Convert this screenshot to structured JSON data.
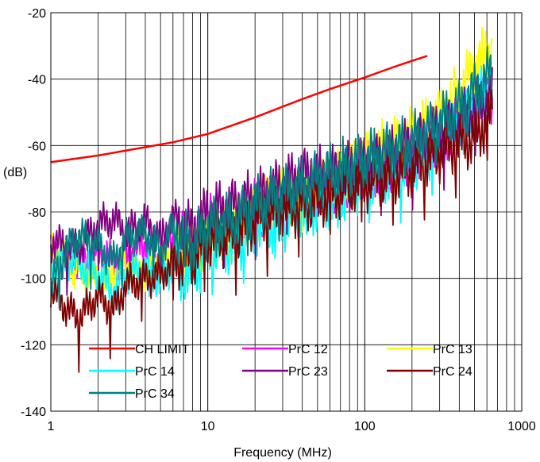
{
  "chart_data": {
    "type": "line",
    "title": "",
    "xlabel": "Frequency (MHz)",
    "ylabel": "(dB)",
    "x_scale": "log",
    "xlim": [
      1,
      1000
    ],
    "ylim": [
      -140,
      -20
    ],
    "x_ticks": [
      1,
      10,
      100,
      1000
    ],
    "x_tick_labels": [
      "1",
      "10",
      "100",
      "1000"
    ],
    "y_ticks": [
      -20,
      -40,
      -60,
      -80,
      -100,
      -120,
      -140
    ],
    "y_tick_labels": [
      "-20",
      "-40",
      "-60",
      "-80",
      "-100",
      "-120",
      "-140"
    ],
    "grid": true,
    "legend_position": "bottom-inside",
    "series": [
      {
        "name": "CH LIMIT",
        "color": "#ff0000",
        "x": [
          1,
          2,
          4,
          6,
          8,
          10,
          20,
          40,
          60,
          100,
          150,
          200,
          250
        ],
        "y": [
          -65,
          -63,
          -60.5,
          -59,
          -57.6,
          -56.5,
          -51.5,
          -46,
          -43,
          -39.5,
          -36.5,
          -34.5,
          -33
        ]
      },
      {
        "name": "PrC 12",
        "color": "#ff00ff",
        "x": [
          1,
          1.2,
          1.5,
          2,
          2.5,
          3,
          4,
          5,
          6,
          8,
          10,
          15,
          20,
          30,
          40,
          60,
          80,
          100,
          150,
          200,
          300,
          400,
          500,
          650
        ],
        "y": [
          -92,
          -93,
          -96,
          -91,
          -95,
          -93,
          -90,
          -93,
          -88,
          -90,
          -84,
          -83,
          -79,
          -76,
          -73,
          -72,
          -69,
          -67,
          -66,
          -62,
          -57,
          -53,
          -48,
          -44
        ]
      },
      {
        "name": "PrC 13",
        "color": "#ffff00",
        "x": [
          1,
          1.2,
          1.5,
          2,
          2.5,
          3,
          4,
          5,
          6,
          8,
          10,
          15,
          20,
          30,
          40,
          60,
          80,
          100,
          150,
          200,
          300,
          400,
          500,
          650
        ],
        "y": [
          -91,
          -94,
          -97,
          -100,
          -99,
          -96,
          -98,
          -95,
          -92,
          -93,
          -89,
          -85,
          -80,
          -75,
          -77,
          -71,
          -68,
          -64,
          -60,
          -57,
          -51,
          -44,
          -36,
          -30
        ]
      },
      {
        "name": "PrC 14",
        "color": "#00ffff",
        "x": [
          1,
          1.2,
          1.5,
          2,
          2.5,
          3,
          4,
          5,
          6,
          8,
          10,
          15,
          20,
          30,
          40,
          60,
          80,
          100,
          150,
          200,
          300,
          400,
          500,
          650
        ],
        "y": [
          -96,
          -94,
          -95,
          -99,
          -104,
          -99,
          -97,
          -101,
          -96,
          -99,
          -92,
          -90,
          -85,
          -83,
          -79,
          -77,
          -73,
          -70,
          -68,
          -66,
          -58,
          -53,
          -47,
          -42
        ]
      },
      {
        "name": "PrC 23",
        "color": "#800080",
        "x": [
          1,
          1.2,
          1.5,
          2,
          2.5,
          3,
          4,
          5,
          6,
          8,
          10,
          15,
          20,
          30,
          40,
          60,
          80,
          100,
          150,
          200,
          300,
          400,
          500,
          650
        ],
        "y": [
          -89,
          -90,
          -91,
          -84,
          -82,
          -86,
          -83,
          -88,
          -82,
          -86,
          -80,
          -78,
          -76,
          -72,
          -69,
          -69,
          -67,
          -66,
          -63,
          -60,
          -56,
          -53,
          -49,
          -45
        ]
      },
      {
        "name": "PrC 24",
        "color": "#800000",
        "x": [
          1,
          1.2,
          1.5,
          2,
          2.5,
          3,
          4,
          5,
          6,
          8,
          10,
          15,
          20,
          30,
          40,
          60,
          80,
          100,
          150,
          200,
          300,
          400,
          500,
          650
        ],
        "y": [
          -103,
          -108,
          -112,
          -105,
          -110,
          -102,
          -100,
          -99,
          -95,
          -94,
          -88,
          -87,
          -82,
          -79,
          -78,
          -75,
          -72,
          -71,
          -69,
          -67,
          -62,
          -59,
          -58,
          -50
        ]
      },
      {
        "name": "PrC 34",
        "color": "#008080",
        "x": [
          1,
          1.2,
          1.5,
          2,
          2.5,
          3,
          4,
          5,
          6,
          8,
          10,
          15,
          20,
          30,
          40,
          60,
          80,
          100,
          150,
          200,
          300,
          400,
          500,
          650
        ],
        "y": [
          -103,
          -93,
          -87,
          -90,
          -95,
          -88,
          -86,
          -92,
          -85,
          -90,
          -84,
          -82,
          -78,
          -74,
          -72,
          -68,
          -66,
          -64,
          -61,
          -59,
          -53,
          -49,
          -44,
          -38
        ]
      }
    ]
  }
}
